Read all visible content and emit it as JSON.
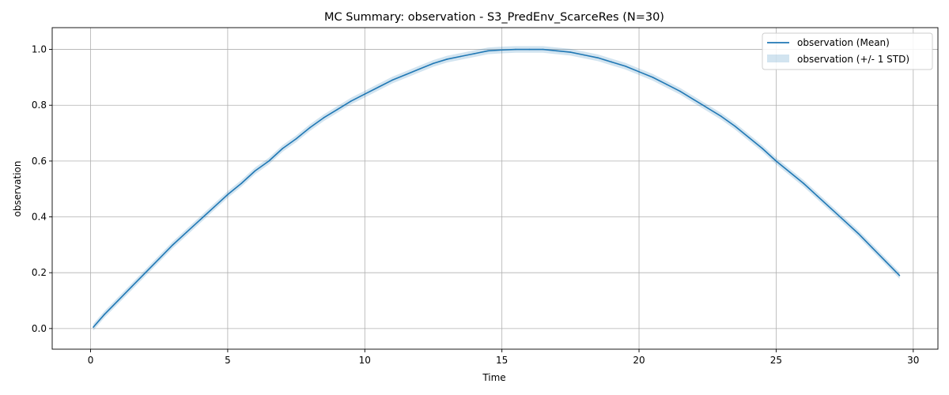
{
  "chart_data": {
    "type": "line",
    "title": "MC Summary: observation - S3_PredEnv_ScarceRes (N=30)",
    "xlabel": "Time",
    "ylabel": "observation",
    "xlim": [
      -1.4,
      30.9
    ],
    "ylim": [
      -0.074,
      1.078
    ],
    "xticks": [
      0,
      5,
      10,
      15,
      20,
      25,
      30
    ],
    "xtick_labels": [
      "0",
      "5",
      "10",
      "15",
      "20",
      "25",
      "30"
    ],
    "yticks": [
      0.0,
      0.2,
      0.4,
      0.6,
      0.8,
      1.0
    ],
    "ytick_labels": [
      "0.0",
      "0.2",
      "0.4",
      "0.6",
      "0.8",
      "1.0"
    ],
    "grid": true,
    "legend_position": "top-right",
    "series": [
      {
        "name": "observation (Mean)",
        "kind": "line",
        "color": "#1f77b4",
        "x": [
          0.1,
          0.5,
          1.0,
          1.5,
          2.0,
          2.5,
          3.0,
          3.5,
          4.0,
          4.5,
          5.0,
          5.5,
          6.0,
          6.5,
          7.0,
          7.5,
          8.0,
          8.5,
          9.0,
          9.5,
          10.0,
          10.5,
          11.0,
          11.5,
          12.0,
          12.5,
          13.0,
          13.5,
          14.0,
          14.5,
          15.0,
          15.5,
          16.0,
          16.5,
          17.0,
          17.5,
          18.0,
          18.5,
          19.0,
          19.5,
          20.0,
          20.5,
          21.0,
          21.5,
          22.0,
          22.5,
          23.0,
          23.5,
          24.0,
          24.5,
          25.0,
          25.5,
          26.0,
          26.5,
          27.0,
          27.5,
          28.0,
          28.5,
          29.0,
          29.5
        ],
        "y": [
          0.005,
          0.05,
          0.1,
          0.15,
          0.2,
          0.25,
          0.3,
          0.345,
          0.39,
          0.435,
          0.48,
          0.52,
          0.565,
          0.6,
          0.645,
          0.68,
          0.72,
          0.755,
          0.785,
          0.815,
          0.84,
          0.865,
          0.89,
          0.91,
          0.93,
          0.95,
          0.965,
          0.975,
          0.985,
          0.995,
          0.998,
          1.0,
          1.0,
          1.0,
          0.995,
          0.99,
          0.98,
          0.97,
          0.955,
          0.94,
          0.92,
          0.9,
          0.875,
          0.85,
          0.82,
          0.79,
          0.76,
          0.725,
          0.685,
          0.645,
          0.6,
          0.56,
          0.52,
          0.475,
          0.43,
          0.385,
          0.34,
          0.29,
          0.24,
          0.19
        ]
      },
      {
        "name": "observation (+/- 1 STD)",
        "kind": "band",
        "color": "#1f77b4",
        "opacity": 0.2,
        "std": 0.012
      }
    ]
  }
}
